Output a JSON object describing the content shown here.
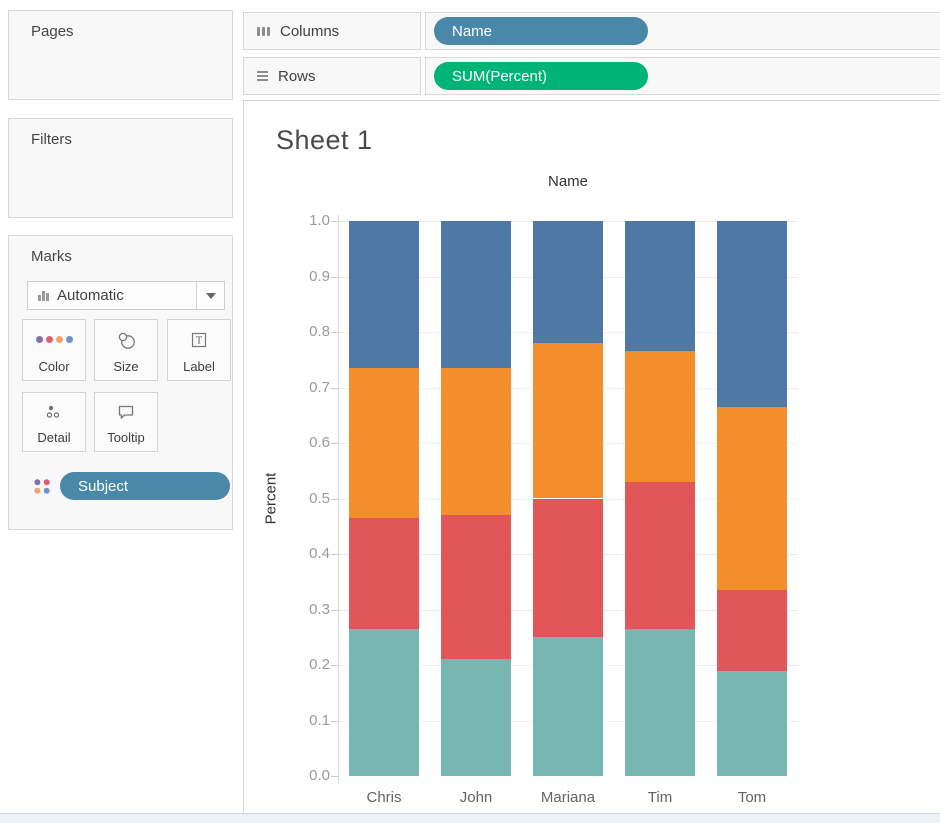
{
  "panels": {
    "pages": {
      "title": "Pages"
    },
    "filters": {
      "title": "Filters"
    },
    "marks": {
      "title": "Marks",
      "mark_type": "Automatic",
      "buttons": {
        "color": {
          "label": "Color"
        },
        "size": {
          "label": "Size"
        },
        "label": {
          "label": "Label"
        },
        "detail": {
          "label": "Detail"
        },
        "tooltip": {
          "label": "Tooltip"
        }
      },
      "color_pill": {
        "label": "Subject",
        "color": "#4a88a9"
      }
    }
  },
  "shelves": {
    "columns": {
      "label": "Columns",
      "pill": {
        "label": "Name",
        "color": "#4a88a9"
      }
    },
    "rows": {
      "label": "Rows",
      "pill": {
        "label": "SUM(Percent)",
        "color": "#00b377"
      }
    }
  },
  "sheet": {
    "title": "Sheet 1",
    "column_header": "Name",
    "y_axis_title": "Percent"
  },
  "chart_data": {
    "type": "bar",
    "stacked": true,
    "title": "Sheet 1",
    "xlabel": "Name",
    "ylabel": "Percent",
    "ylim": [
      0.0,
      1.0
    ],
    "grid": true,
    "legend_position": "none",
    "categories": [
      "Chris",
      "John",
      "Mariana",
      "Tim",
      "Tom"
    ],
    "ytick_labels": [
      "0.0",
      "0.1",
      "0.2",
      "0.3",
      "0.4",
      "0.5",
      "0.6",
      "0.7",
      "0.8",
      "0.9",
      "1.0"
    ],
    "series": [
      {
        "name": "segment-1-teal (bottom)",
        "color": "#76b7b2",
        "values": [
          0.265,
          0.21,
          0.25,
          0.265,
          0.19
        ]
      },
      {
        "name": "segment-2-red",
        "color": "#e15759",
        "values": [
          0.2,
          0.26,
          0.25,
          0.265,
          0.145
        ]
      },
      {
        "name": "segment-3-orange",
        "color": "#f28e2b",
        "values": [
          0.27,
          0.265,
          0.28,
          0.235,
          0.33
        ]
      },
      {
        "name": "segment-4-blue (top)",
        "color": "#4e79a7",
        "values": [
          0.265,
          0.265,
          0.22,
          0.235,
          0.335
        ]
      }
    ]
  },
  "icon_colors": {
    "color_dot_purple": "#8172ac",
    "color_dot_red": "#e15c6e",
    "color_dot_orange": "#f0a269",
    "color_dot_blue": "#7292c8"
  }
}
